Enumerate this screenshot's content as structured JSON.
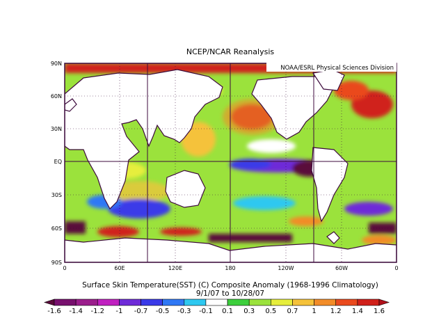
{
  "title": "NCEP/NCAR Reanalysis",
  "credit": "NOAA/ESRL Physical Sciences Division",
  "caption_line1": "Surface Skin Temperature(SST) (C) Composite Anomaly (1968-1996 Climatology)",
  "caption_line2": "9/1/07  to 10/28/07",
  "y_ticks": [
    "90N",
    "60N",
    "30N",
    "EQ",
    "30S",
    "60S",
    "90S"
  ],
  "x_ticks": [
    "0",
    "60E",
    "120E",
    "180",
    "120W",
    "60W",
    "0"
  ],
  "colorbar": {
    "labels": [
      "-1.6",
      "-1.4",
      "-1.2",
      "-1",
      "-0.7",
      "-0.5",
      "-0.3",
      "-0.1",
      "0.1",
      "0.3",
      "0.5",
      "0.7",
      "1",
      "1.2",
      "1.4",
      "1.6"
    ],
    "colors": [
      "#5a0a3a",
      "#78106e",
      "#9b1e8c",
      "#c020c0",
      "#6e2bd8",
      "#3a3ae8",
      "#2f78f5",
      "#2ec8f0",
      "#ffffff",
      "#3ccf3c",
      "#9be23c",
      "#e6ee3c",
      "#f5c23a",
      "#f28c28",
      "#ea4a1e",
      "#d0201a",
      "#b0101a"
    ]
  },
  "colors": {
    "land": "#ffffff",
    "frame": "#3c0a3c",
    "grid": "#3c0a3c"
  }
}
